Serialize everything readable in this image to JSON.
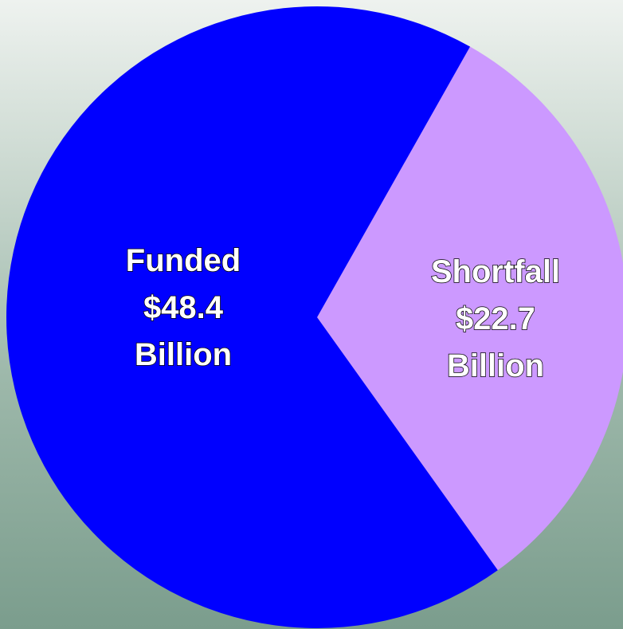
{
  "chart_data": {
    "type": "pie",
    "unit": "Billion",
    "colors": [
      "#0000ff",
      "#cc99ff"
    ],
    "slices": [
      {
        "name": "Funded",
        "value": 48.4,
        "color": "#0000ff",
        "label_lines": [
          "Funded",
          "$48.4",
          "Billion"
        ]
      },
      {
        "name": "Shortfall",
        "value": 22.7,
        "color": "#cc99ff",
        "label_lines": [
          "Shortfall",
          "$22.7",
          "Billion"
        ]
      }
    ]
  }
}
